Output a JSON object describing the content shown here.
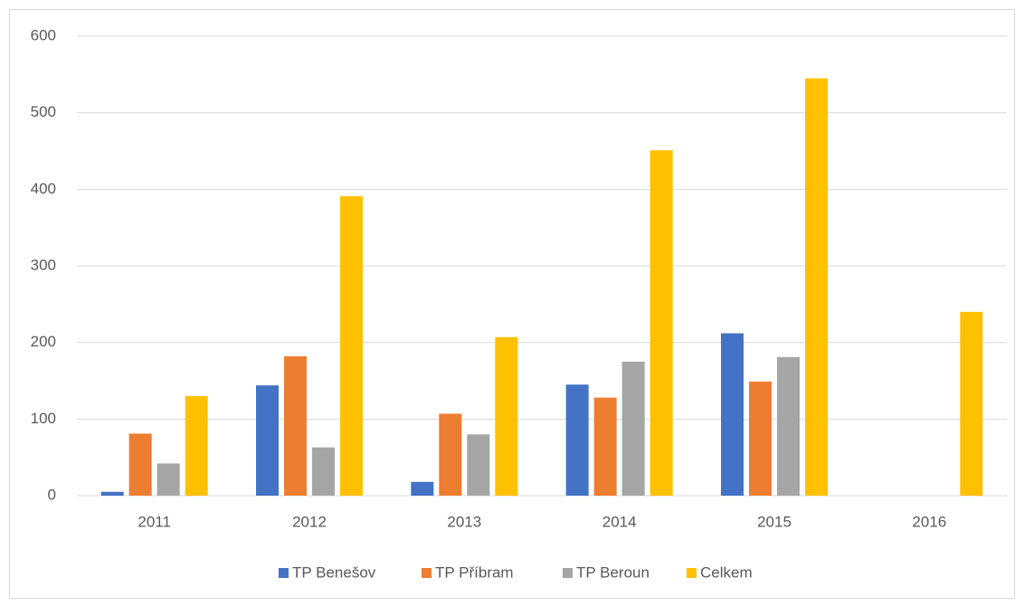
{
  "chart_data": {
    "type": "bar",
    "categories": [
      "2011",
      "2012",
      "2013",
      "2014",
      "2015",
      "2016"
    ],
    "series": [
      {
        "name": "TP Benešov",
        "color": "#4472c4",
        "values": [
          5,
          144,
          18,
          145,
          212,
          null
        ]
      },
      {
        "name": "TP Příbram",
        "color": "#ed7d31",
        "values": [
          81,
          182,
          107,
          128,
          149,
          null
        ]
      },
      {
        "name": "TP Beroun",
        "color": "#a5a5a5",
        "values": [
          42,
          63,
          80,
          175,
          181,
          null
        ]
      },
      {
        "name": "Celkem",
        "color": "#ffc000",
        "values": [
          130,
          391,
          207,
          451,
          545,
          240
        ]
      }
    ],
    "ylim": [
      0,
      600
    ],
    "yticks": [
      0,
      100,
      200,
      300,
      400,
      500,
      600
    ],
    "grid": true,
    "legend": "bottom"
  }
}
